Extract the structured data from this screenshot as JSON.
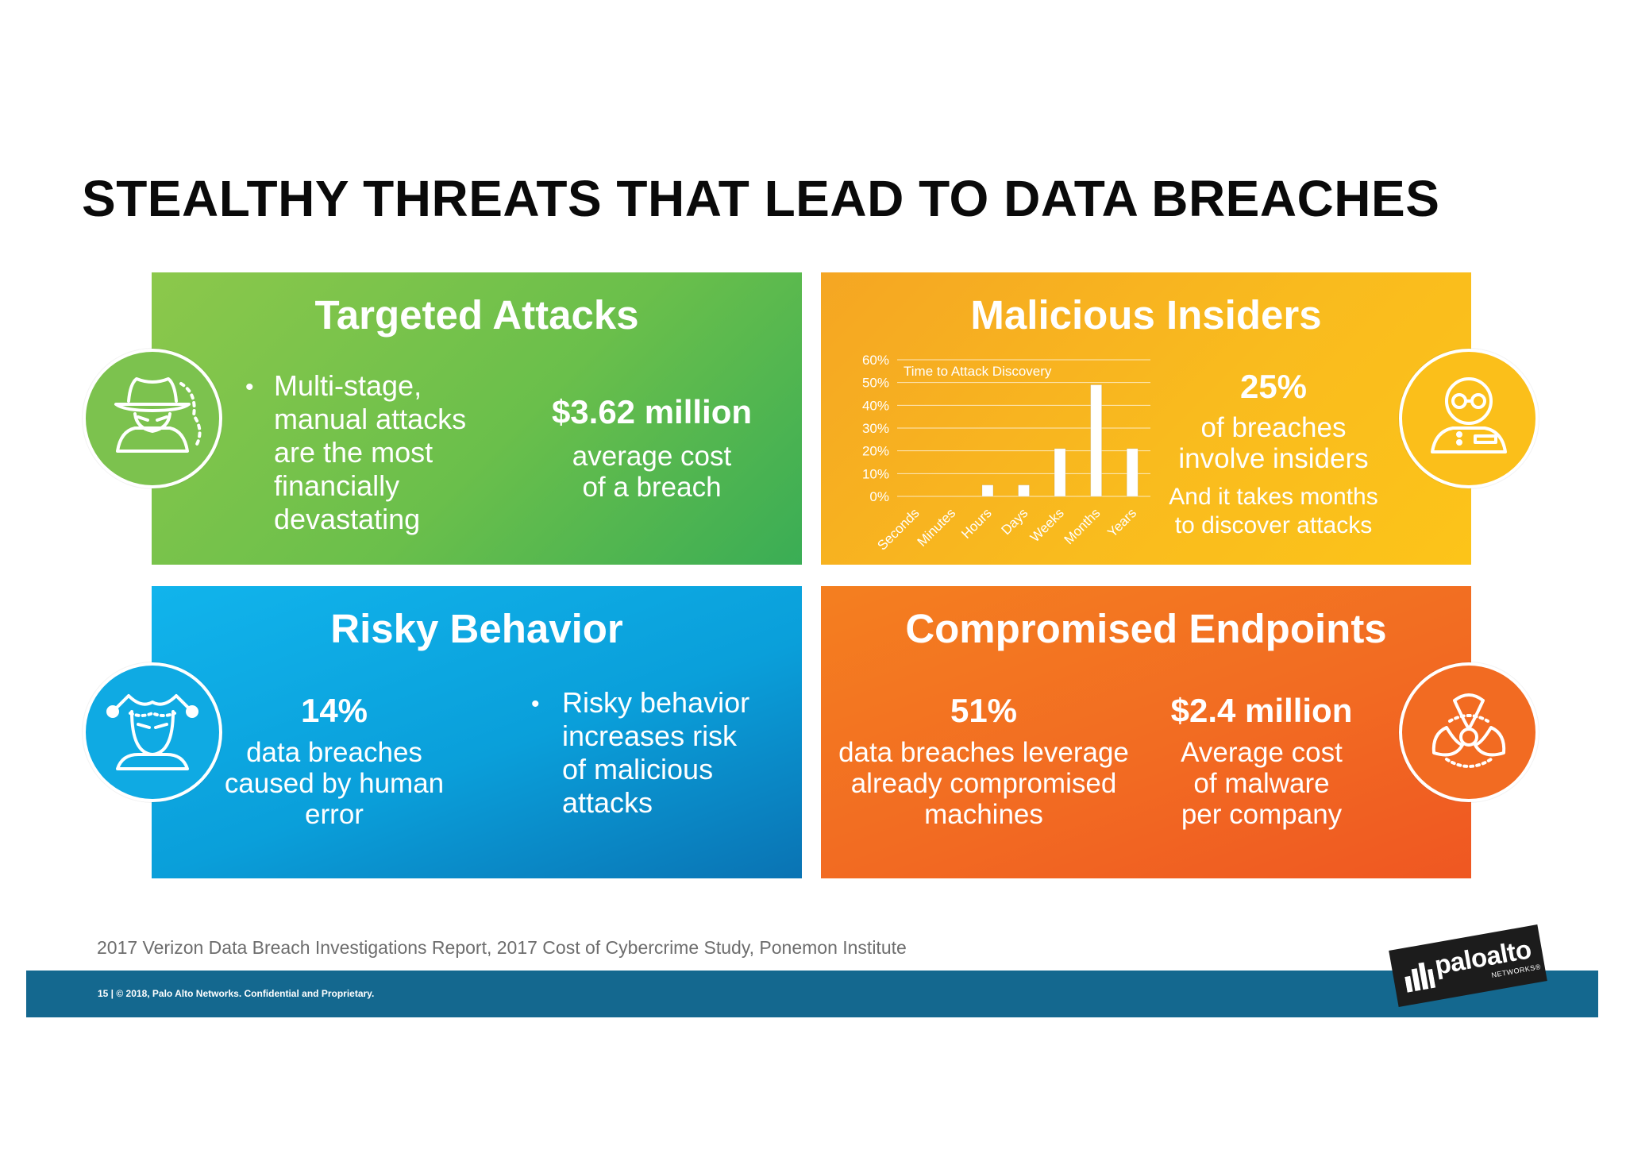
{
  "page": {
    "title": "STEALTHY THREATS THAT LEAD TO DATA BREACHES",
    "source": "2017 Verizon Data Breach Investigations Report, 2017 Cost of Cybercrime Study, Ponemon Institute",
    "footer": "15  |  © 2018, Palo Alto Networks. Confidential and Proprietary."
  },
  "logo": {
    "text": "paloalto",
    "sub": "NETWORKS®"
  },
  "panels": {
    "targeted": {
      "title": "Targeted Attacks",
      "bullet": "Multi-stage,\nmanual attacks\nare the most\nfinancially\ndevastating",
      "stat": "$3.62 million",
      "stat_text": "average cost\nof a breach",
      "icon": "spy-hacker-icon",
      "color": "#6abf4b"
    },
    "insiders": {
      "title": "Malicious Insiders",
      "stat": "25%",
      "stat_text": "of breaches\ninvolve insiders",
      "note": "And it takes months\nto discover attacks",
      "icon": "insider-person-icon",
      "color": "#f9bb1e"
    },
    "risky": {
      "title": "Risky Behavior",
      "stat": "14%",
      "stat_text": "data breaches\ncaused by human\nerror",
      "bullet": "Risky behavior\nincreases risk\nof malicious\nattacks",
      "icon": "jester-icon",
      "color": "#0a9fda"
    },
    "endpoints": {
      "title": "Compromised Endpoints",
      "stat1": "51%",
      "stat1_text": "data breaches leverage\nalready compromised\nmachines",
      "stat2": "$2.4 million",
      "stat2_text": "Average cost\nof malware\nper company",
      "icon": "biohazard-icon",
      "color": "#f26b22"
    }
  },
  "chart_data": {
    "type": "bar",
    "title": "Time to Attack Discovery",
    "categories": [
      "Seconds",
      "Minutes",
      "Hours",
      "Days",
      "Weeks",
      "Months",
      "Years"
    ],
    "values": [
      0,
      0,
      5,
      5,
      21,
      49,
      21
    ],
    "ylim": [
      0,
      60
    ],
    "yticks": [
      "0%",
      "10%",
      "20%",
      "30%",
      "40%",
      "50%",
      "60%"
    ],
    "grid": true
  }
}
